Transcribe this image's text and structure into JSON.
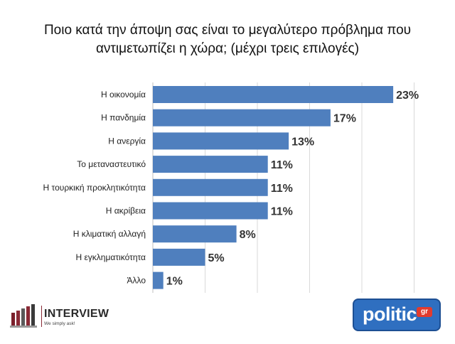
{
  "chart_data": {
    "type": "bar",
    "orientation": "horizontal",
    "title_lines": [
      "Ποιο κατά την άποψη σας είναι το μεγαλύτερο πρόβλημα που",
      "αντιμετωπίζει η χώρα; (μέχρι τρεις επιλογές)"
    ],
    "categories": [
      "Η οικονομία",
      "Η πανδημία",
      "Η ανεργία",
      "Το μεταναστευτικό",
      "Η τουρκική προκλητικότητα",
      "Η ακρίβεια",
      "Η κλιματική αλλαγή",
      "Η εγκληματικότητα",
      "Άλλο"
    ],
    "values": [
      23,
      17,
      13,
      11,
      11,
      11,
      8,
      5,
      1
    ],
    "value_labels": [
      "23%",
      "17%",
      "13%",
      "11%",
      "11%",
      "11%",
      "8%",
      "5%",
      "1%"
    ],
    "xlim": [
      0,
      25
    ],
    "grid": "vertical",
    "bar_color": "#4f7fbe"
  },
  "logos": {
    "interview_name": "INTERVIEW",
    "interview_tagline": "We simply ask!",
    "politic_name": "politic",
    "politic_suffix": "gr"
  }
}
